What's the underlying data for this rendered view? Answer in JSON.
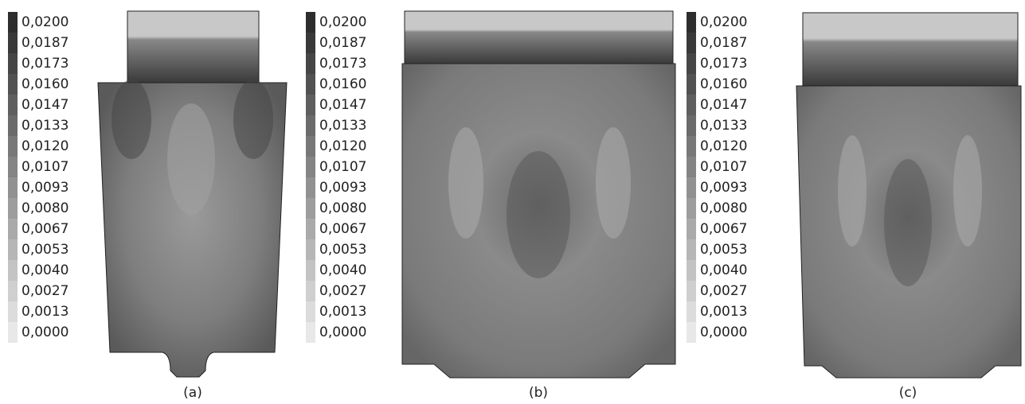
{
  "panels": [
    {
      "caption": "(a)",
      "scale": [
        "0,0200",
        "0,0187",
        "0,0173",
        "0,0160",
        "0,0147",
        "0,0133",
        "0,0120",
        "0,0107",
        "0,0093",
        "0,0080",
        "0,0067",
        "0,0053",
        "0,0040",
        "0,0027",
        "0,0013",
        "0,0000"
      ]
    },
    {
      "caption": "(b)",
      "scale": [
        "0,0200",
        "0,0187",
        "0,0173",
        "0,0160",
        "0,0147",
        "0,0133",
        "0,0120",
        "0,0107",
        "0,0093",
        "0,0080",
        "0,0067",
        "0,0053",
        "0,0040",
        "0,0027",
        "0,0013",
        "0,0000"
      ]
    },
    {
      "caption": "(c)",
      "scale": [
        "0,0200",
        "0,0187",
        "0,0173",
        "0,0160",
        "0,0147",
        "0,0133",
        "0,0120",
        "0,0107",
        "0,0093",
        "0,0080",
        "0,0067",
        "0,0053",
        "0,0040",
        "0,0027",
        "0,0013",
        "0,0000"
      ]
    }
  ]
}
